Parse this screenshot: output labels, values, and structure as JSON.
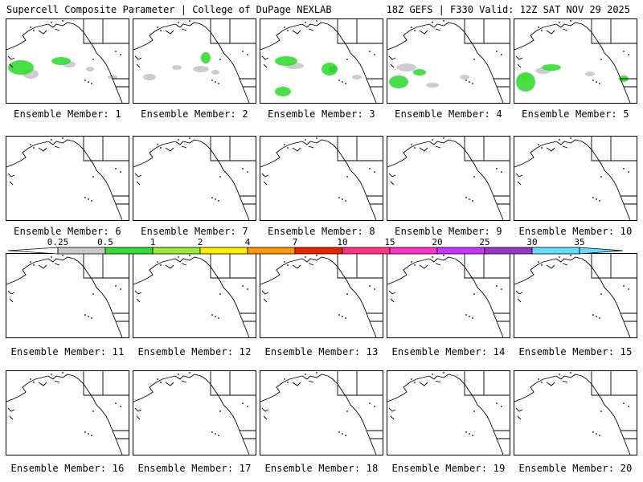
{
  "header": {
    "left": "Supercell Composite Parameter | College of DuPage NEXLAB",
    "right": "18Z GEFS | F330 Valid: 12Z SAT NOV 29 2025"
  },
  "panel_label_prefix": "Ensemble Member: ",
  "members": [
    {
      "label": "Ensemble Member: 1",
      "blobs": [
        [
          18,
          60,
          16,
          9,
          "#33dd33"
        ],
        [
          30,
          68,
          10,
          6,
          "#c8c8c8"
        ],
        [
          68,
          52,
          12,
          5,
          "#33dd33"
        ],
        [
          78,
          56,
          8,
          4,
          "#c8c8c8"
        ],
        [
          132,
          72,
          6,
          3,
          "#c8c8c8"
        ],
        [
          104,
          62,
          5,
          3,
          "#c8c8c8"
        ]
      ]
    },
    {
      "label": "Ensemble Member: 2",
      "blobs": [
        [
          20,
          72,
          8,
          4,
          "#c8c8c8"
        ],
        [
          84,
          62,
          10,
          4,
          "#c8c8c8"
        ],
        [
          90,
          48,
          6,
          7,
          "#33dd33"
        ],
        [
          102,
          66,
          5,
          3,
          "#c8c8c8"
        ],
        [
          54,
          60,
          6,
          3,
          "#c8c8c8"
        ]
      ]
    },
    {
      "label": "Ensemble Member: 3",
      "blobs": [
        [
          32,
          52,
          14,
          6,
          "#33dd33"
        ],
        [
          42,
          58,
          12,
          4,
          "#c8c8c8"
        ],
        [
          86,
          62,
          10,
          8,
          "#33dd33"
        ],
        [
          90,
          62,
          5,
          4,
          "#006600"
        ],
        [
          28,
          90,
          10,
          6,
          "#33dd33"
        ],
        [
          120,
          72,
          6,
          3,
          "#c8c8c8"
        ]
      ]
    },
    {
      "label": "Ensemble Member: 4",
      "blobs": [
        [
          14,
          78,
          12,
          8,
          "#33dd33"
        ],
        [
          24,
          60,
          12,
          5,
          "#c8c8c8"
        ],
        [
          40,
          66,
          8,
          4,
          "#33dd33"
        ],
        [
          96,
          72,
          6,
          3,
          "#c8c8c8"
        ],
        [
          56,
          82,
          8,
          3,
          "#c8c8c8"
        ]
      ]
    },
    {
      "label": "Ensemble Member: 5",
      "blobs": [
        [
          14,
          78,
          12,
          12,
          "#33dd33"
        ],
        [
          12,
          74,
          4,
          5,
          "#eeee00"
        ],
        [
          46,
          60,
          12,
          4,
          "#33dd33"
        ],
        [
          36,
          64,
          10,
          4,
          "#c8c8c8"
        ],
        [
          136,
          74,
          6,
          4,
          "#33dd33"
        ],
        [
          94,
          68,
          6,
          3,
          "#c8c8c8"
        ]
      ]
    }
  ]
}
